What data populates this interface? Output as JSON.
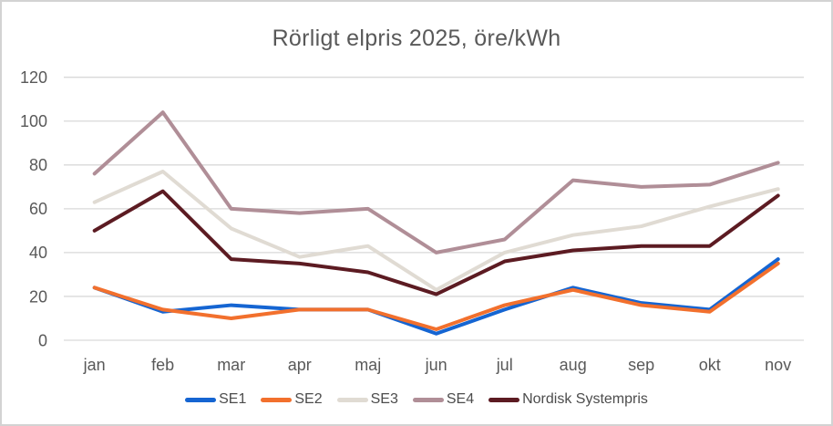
{
  "frame": {
    "background_color": "#ffffff",
    "border_color": "#d3d3d3"
  },
  "chart_data": {
    "type": "line",
    "title": "Rörligt elpris 2025, öre/kWh",
    "title_color": "#595959",
    "categories": [
      "jan",
      "feb",
      "mar",
      "apr",
      "maj",
      "jun",
      "jul",
      "aug",
      "sep",
      "okt",
      "nov"
    ],
    "series": [
      {
        "name": "SE1",
        "color": "#1565d2",
        "values": [
          24,
          13,
          16,
          14,
          14,
          3,
          14,
          24,
          17,
          14,
          37
        ]
      },
      {
        "name": "SE2",
        "color": "#f2702d",
        "values": [
          24,
          14,
          10,
          14,
          14,
          5,
          16,
          23,
          16,
          13,
          35
        ]
      },
      {
        "name": "SE3",
        "color": "#e0dbd3",
        "values": [
          63,
          77,
          51,
          38,
          43,
          23,
          40,
          48,
          52,
          61,
          69
        ]
      },
      {
        "name": "SE4",
        "color": "#b08e97",
        "values": [
          76,
          104,
          60,
          58,
          60,
          40,
          46,
          73,
          70,
          71,
          81
        ]
      },
      {
        "name": "Nordisk Systempris",
        "color": "#5c1b22",
        "values": [
          50,
          68,
          37,
          35,
          31,
          21,
          36,
          41,
          43,
          43,
          66
        ]
      }
    ],
    "y_axis": {
      "min": 0,
      "max": 120,
      "step": 20,
      "tick_labels": [
        "0",
        "20",
        "40",
        "60",
        "80",
        "100",
        "120"
      ],
      "label_color": "#595959"
    },
    "x_axis": {
      "label_color": "#595959"
    },
    "gridline_color": "#d9d9d9",
    "grid": "horizontal",
    "legend_position": "bottom",
    "legend_text_color": "#4c4c4c"
  }
}
